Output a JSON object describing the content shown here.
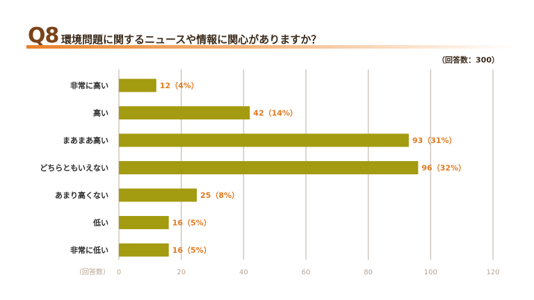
{
  "header": {
    "q_number": "Q8",
    "question": "環境問題に関するニュースや情報に関心がありますか？",
    "respondents": "（回答数：300）"
  },
  "colors": {
    "bar": "#a39b10",
    "value_label": "#e07a20",
    "accent": "#e8822b",
    "grid": "#cfc7bf"
  },
  "chart_data": {
    "type": "bar",
    "orientation": "horizontal",
    "categories": [
      "非常に高い",
      "高い",
      "まあまあ高い",
      "どちらともいえない",
      "あまり高くない",
      "低い",
      "非常に低い"
    ],
    "values": [
      12,
      42,
      93,
      96,
      25,
      16,
      16
    ],
    "value_labels": [
      "12（4%）",
      "42（14%）",
      "93（31%）",
      "96（32%）",
      "25（8%）",
      "16（5%）",
      "16（5%）"
    ],
    "xlabel": "（回答数）",
    "xlim": [
      0,
      120
    ],
    "xticks": [
      0,
      20,
      40,
      60,
      80,
      100,
      120
    ],
    "grid": true
  }
}
